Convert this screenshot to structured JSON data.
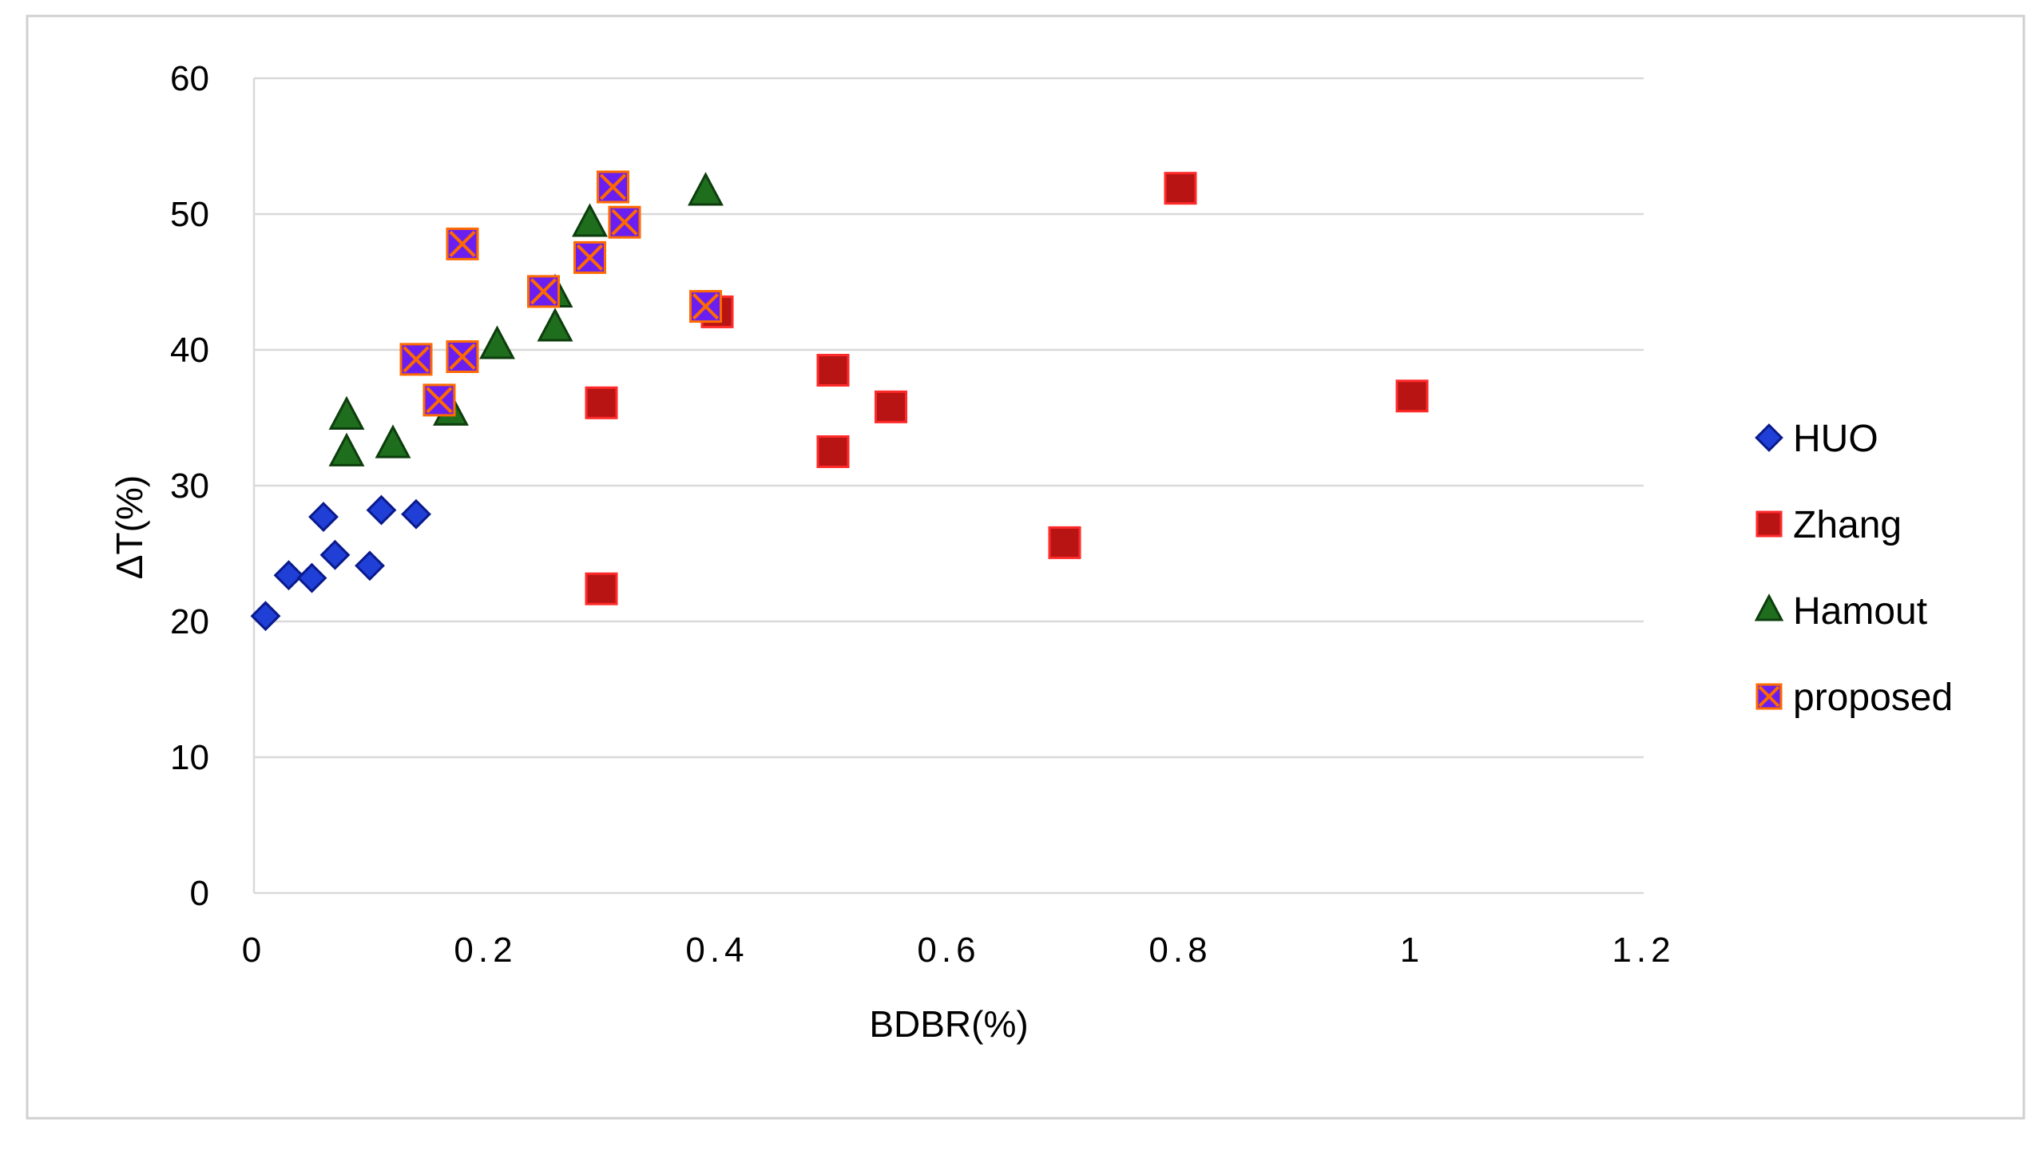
{
  "chart_data": {
    "type": "scatter",
    "title": "",
    "xlabel": "BDBR(%)",
    "ylabel": "ΔT(%)",
    "xlim": [
      0,
      1.2
    ],
    "ylim": [
      0,
      60
    ],
    "x_ticks": [
      0,
      0.2,
      0.4,
      0.6,
      0.8,
      1,
      1.2
    ],
    "x_tick_labels": [
      "0",
      "0.2",
      "0.4",
      "0.6",
      "0.8",
      "1",
      "1.2"
    ],
    "y_ticks": [
      0,
      10,
      20,
      30,
      40,
      50,
      60
    ],
    "y_tick_labels": [
      "0",
      "10",
      "20",
      "30",
      "40",
      "50",
      "60"
    ],
    "grid": "horizontal",
    "legend_position": "right",
    "series": [
      {
        "name": "HUO",
        "marker": "diamond",
        "fill": "#1f3fd6",
        "stroke": "#0a1a8c",
        "points": [
          [
            0.01,
            20.4
          ],
          [
            0.03,
            23.4
          ],
          [
            0.05,
            23.2
          ],
          [
            0.06,
            27.7
          ],
          [
            0.07,
            24.9
          ],
          [
            0.1,
            24.1
          ],
          [
            0.11,
            28.2
          ],
          [
            0.14,
            27.9
          ]
        ]
      },
      {
        "name": "Zhang",
        "marker": "square",
        "fill": "#b81414",
        "stroke": "#ff2a2a",
        "points": [
          [
            0.3,
            22.4
          ],
          [
            0.3,
            36.1
          ],
          [
            0.4,
            42.8
          ],
          [
            0.5,
            38.5
          ],
          [
            0.5,
            32.5
          ],
          [
            0.55,
            35.8
          ],
          [
            0.7,
            25.8
          ],
          [
            0.8,
            51.9
          ],
          [
            1.0,
            36.6
          ]
        ]
      },
      {
        "name": "Hamout",
        "marker": "triangle",
        "fill": "#1e6e1e",
        "stroke": "#0d3d0d",
        "points": [
          [
            0.08,
            35.1
          ],
          [
            0.08,
            32.4
          ],
          [
            0.12,
            33.0
          ],
          [
            0.17,
            35.4
          ],
          [
            0.21,
            40.3
          ],
          [
            0.26,
            44.1
          ],
          [
            0.26,
            41.6
          ],
          [
            0.29,
            49.3
          ],
          [
            0.39,
            51.6
          ]
        ]
      },
      {
        "name": "proposed",
        "marker": "square-x",
        "fill": "#6a1ff0",
        "stroke": "#ff6a00",
        "points": [
          [
            0.14,
            39.3
          ],
          [
            0.16,
            36.3
          ],
          [
            0.18,
            47.8
          ],
          [
            0.18,
            39.5
          ],
          [
            0.25,
            44.3
          ],
          [
            0.29,
            46.8
          ],
          [
            0.31,
            52.0
          ],
          [
            0.32,
            49.4
          ],
          [
            0.39,
            43.2
          ]
        ]
      }
    ]
  }
}
